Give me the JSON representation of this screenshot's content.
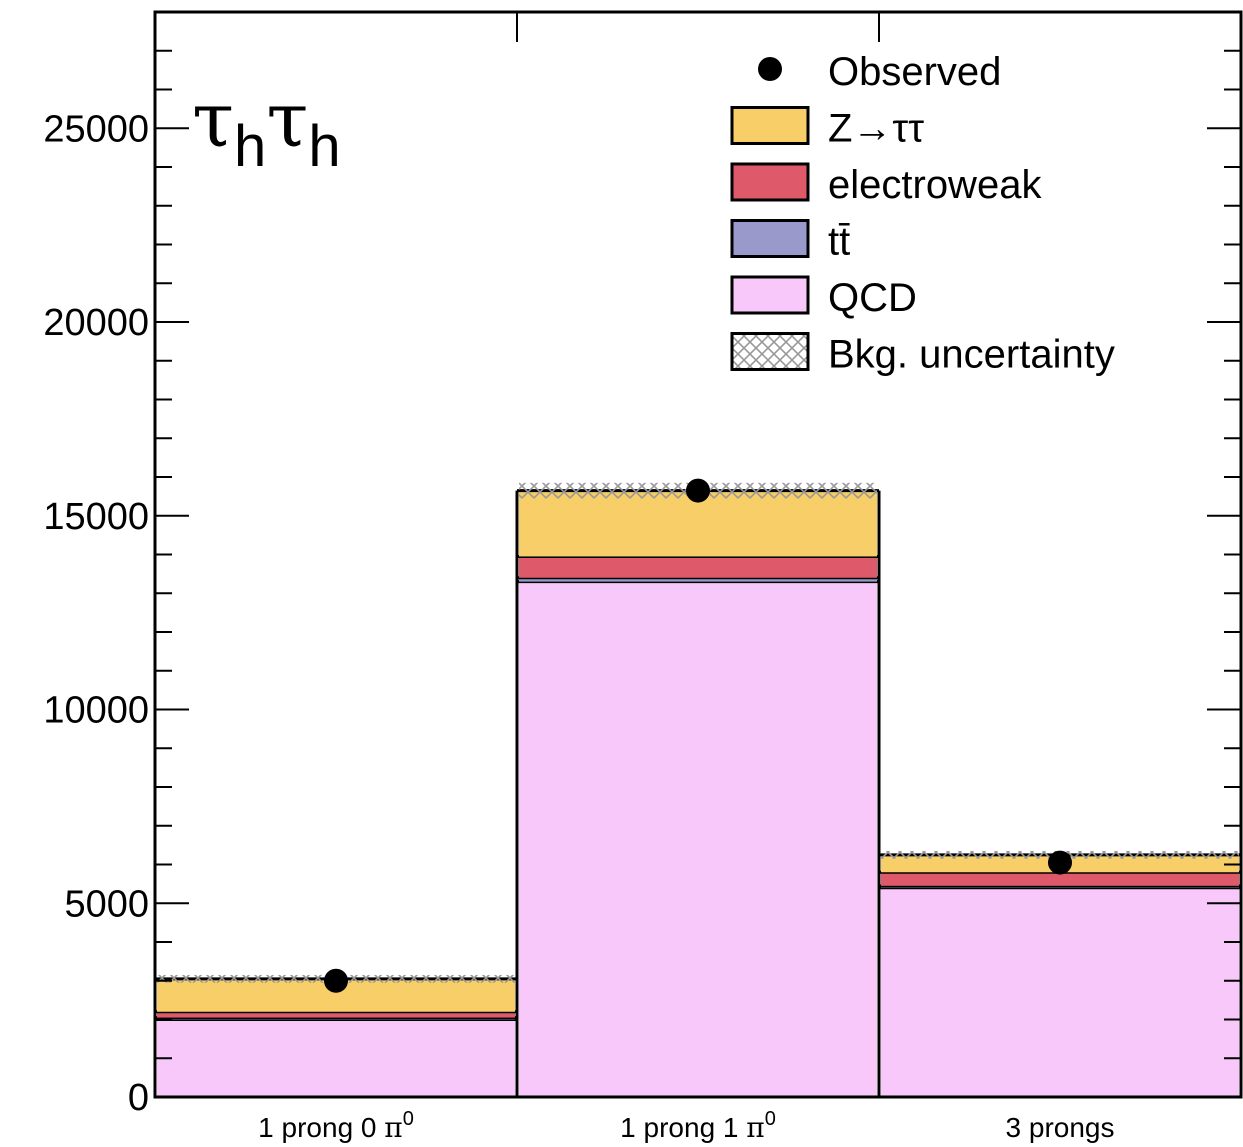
{
  "chart_data": {
    "type": "bar",
    "stacked": true,
    "channel_label": "τhτh",
    "categories": [
      {
        "main": "1 prong 0 ",
        "greek": "π",
        "sup": "0"
      },
      {
        "main": "1 prong 1 ",
        "greek": "π",
        "sup": "0"
      },
      {
        "main": "3 prongs",
        "greek": "",
        "sup": ""
      }
    ],
    "ylim": [
      0,
      28000
    ],
    "yticks": [
      0,
      5000,
      10000,
      15000,
      20000,
      25000
    ],
    "ytick_labels": [
      "0",
      "5000",
      "10000",
      "15000",
      "20000",
      "25000"
    ],
    "series": [
      {
        "name": "QCD",
        "key": "qcd",
        "color": "#f9c8fa",
        "values": [
          2000,
          13300,
          5400
        ]
      },
      {
        "name": "tt̄",
        "key": "ttbar",
        "color": "#9999cc",
        "values": [
          50,
          100,
          50
        ]
      },
      {
        "name": "electroweak",
        "key": "ewk",
        "color": "#de5a6a",
        "values": [
          150,
          550,
          350
        ]
      },
      {
        "name": "Z→ττ",
        "key": "ztt",
        "color": "#f8ce68",
        "values": [
          850,
          1700,
          450
        ]
      }
    ],
    "observed": {
      "name": "Observed",
      "values": [
        3000,
        15650,
        6050
      ]
    },
    "uncertainty": {
      "name": "Bkg. uncertainty",
      "values": [
        100,
        200,
        100
      ]
    },
    "legend": {
      "position": "top-right",
      "entries": [
        {
          "label": "Observed",
          "marker": "dot"
        },
        {
          "label": "Z→ττ",
          "marker": "box",
          "color": "#f8ce68"
        },
        {
          "label": "electroweak",
          "marker": "box",
          "color": "#de5a6a"
        },
        {
          "label": "tt̄",
          "marker": "box",
          "color": "#9999cc"
        },
        {
          "label": "QCD",
          "marker": "box",
          "color": "#f9c8fa"
        },
        {
          "label": "Bkg. uncertainty",
          "marker": "hatch"
        }
      ]
    },
    "grid": false
  }
}
